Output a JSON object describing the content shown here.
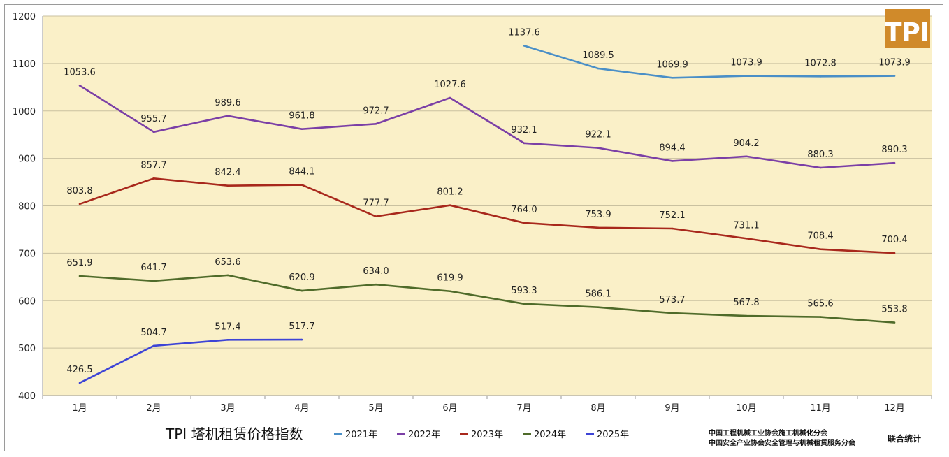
{
  "chart_data": {
    "type": "line",
    "title": "TPI 塔机租赁价格指数",
    "categories": [
      "1月",
      "2月",
      "3月",
      "4月",
      "5月",
      "6月",
      "7月",
      "8月",
      "9月",
      "10月",
      "11月",
      "12月"
    ],
    "ylim": [
      400,
      1200
    ],
    "yticks": [
      400,
      500,
      600,
      700,
      800,
      900,
      1000,
      1100,
      1200
    ],
    "grid": true,
    "legend_position": "bottom",
    "series": [
      {
        "name": "2021年",
        "color": "#4a8fc7",
        "values": [
          null,
          null,
          null,
          null,
          null,
          null,
          1137.6,
          1089.5,
          1069.9,
          1073.9,
          1072.8,
          1073.9
        ]
      },
      {
        "name": "2022年",
        "color": "#7b3fa6",
        "values": [
          1053.6,
          955.7,
          989.6,
          961.8,
          972.7,
          1027.6,
          932.1,
          922.1,
          894.4,
          904.2,
          880.3,
          890.3
        ]
      },
      {
        "name": "2023年",
        "color": "#a8281c",
        "values": [
          803.8,
          857.7,
          842.4,
          844.1,
          777.7,
          801.2,
          764.0,
          753.9,
          752.1,
          731.1,
          708.4,
          700.4
        ]
      },
      {
        "name": "2024年",
        "color": "#4f6b2a",
        "values": [
          651.9,
          641.7,
          653.6,
          620.9,
          634.0,
          619.9,
          593.3,
          586.1,
          573.7,
          567.8,
          565.6,
          553.8
        ]
      },
      {
        "name": "2025年",
        "color": "#3d44d6",
        "values": [
          426.5,
          504.7,
          517.4,
          517.7,
          null,
          null,
          null,
          null,
          null,
          null,
          null,
          null
        ]
      }
    ]
  },
  "logo": {
    "text": "TPI",
    "color": "#d08a2a"
  },
  "footer": {
    "org_line1": "中国工程机械工业协会施工机械化分会",
    "org_line2": "中国安全产业协会安全管理与机械租赁服务分会",
    "stat_label": "联合统计"
  },
  "colors": {
    "plot_bg": "#faf0c8",
    "grid": "#c9c1a0"
  }
}
